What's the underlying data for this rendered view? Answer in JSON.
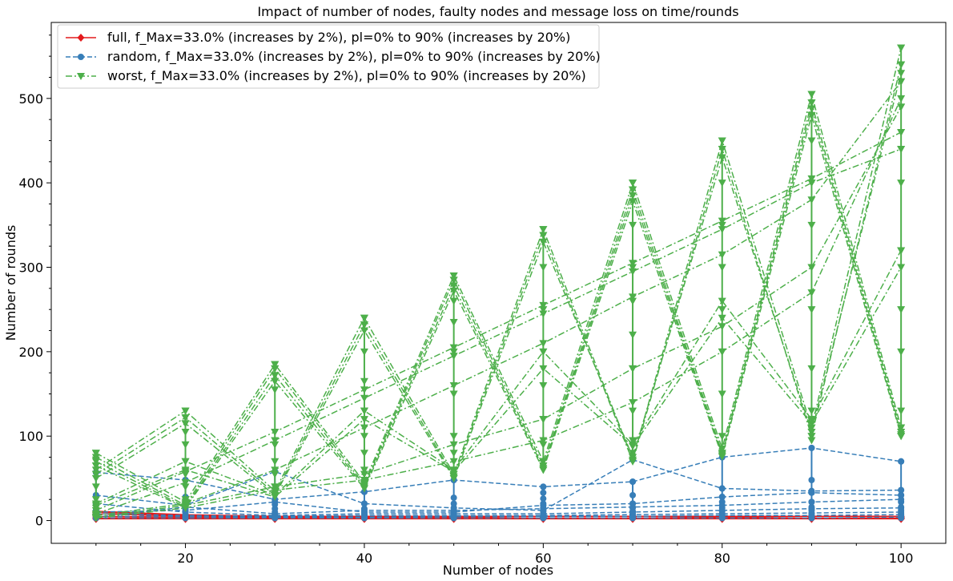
{
  "chart_data": {
    "type": "line",
    "title": "Impact of number of nodes, faulty nodes and message loss on time/rounds",
    "xlabel": "Number of nodes",
    "ylabel": "Number of rounds",
    "xlim": [
      5,
      105
    ],
    "ylim": [
      -27,
      590
    ],
    "xticks": [
      20,
      40,
      60,
      80,
      100
    ],
    "yticks": [
      0,
      100,
      200,
      300,
      400,
      500
    ],
    "legend_position": "top-left",
    "nodes": [
      10,
      20,
      30,
      40,
      50,
      60,
      70,
      80,
      90,
      100
    ],
    "series": [
      {
        "name": "full, f_Max=33.0% (increases by 2%), pl=0% to 90% (increases by 20%)",
        "color": "#e41a1c",
        "marker": "diamond",
        "linestyle": "solid",
        "lines": [
          [
            10,
            6,
            4,
            4,
            4,
            3,
            3,
            4,
            3,
            3
          ],
          [
            8,
            5,
            3,
            3,
            3,
            3,
            3,
            3,
            3,
            3
          ],
          [
            5,
            4,
            3,
            3,
            3,
            3,
            3,
            3,
            3,
            3
          ],
          [
            3,
            3,
            3,
            3,
            3,
            3,
            3,
            3,
            3,
            3
          ],
          [
            11,
            7,
            5,
            5,
            5,
            5,
            5,
            5,
            5,
            5
          ],
          [
            2,
            2,
            2,
            2,
            2,
            2,
            2,
            2,
            2,
            2
          ]
        ],
        "stack": [
          [
            2,
            4,
            6,
            8,
            10,
            11
          ],
          [
            2,
            3,
            5,
            6,
            7
          ],
          [
            2,
            3,
            4,
            5
          ],
          [
            2,
            3,
            4,
            5
          ],
          [
            2,
            3,
            4,
            5
          ],
          [
            2,
            3,
            4,
            5
          ],
          [
            2,
            3,
            4,
            5
          ],
          [
            2,
            3,
            4,
            5
          ],
          [
            2,
            3,
            4,
            5
          ],
          [
            2,
            3,
            4,
            5
          ]
        ]
      },
      {
        "name": "random, f_Max=33.0% (increases by 2%), pl=0% to 90% (increases by 20%)",
        "color": "#377eb8",
        "marker": "circle",
        "linestyle": "dashed",
        "lines": [
          [
            57,
            48,
            25,
            34,
            48,
            40,
            46,
            75,
            86,
            70
          ],
          [
            30,
            18,
            58,
            20,
            15,
            12,
            72,
            38,
            35,
            36
          ],
          [
            10,
            12,
            22,
            10,
            10,
            18,
            20,
            28,
            33,
            30
          ],
          [
            4,
            16,
            8,
            12,
            12,
            14,
            16,
            18,
            22,
            25
          ],
          [
            20,
            10,
            6,
            8,
            8,
            8,
            10,
            12,
            14,
            15
          ],
          [
            8,
            6,
            5,
            6,
            6,
            6,
            7,
            8,
            9,
            10
          ],
          [
            5,
            5,
            4,
            4,
            5,
            5,
            5,
            6,
            6,
            7
          ],
          [
            3,
            3,
            3,
            3,
            3,
            3,
            3,
            3,
            3,
            4
          ]
        ],
        "stack": [
          [
            3,
            5,
            8,
            12,
            20,
            30,
            57
          ],
          [
            3,
            5,
            7,
            10,
            14,
            18,
            28,
            48
          ],
          [
            3,
            5,
            7,
            10,
            14,
            19,
            25,
            58
          ],
          [
            3,
            5,
            7,
            10,
            14,
            20,
            34
          ],
          [
            3,
            5,
            8,
            11,
            15,
            20,
            27,
            48
          ],
          [
            3,
            5,
            8,
            11,
            15,
            20,
            26,
            33,
            40
          ],
          [
            3,
            5,
            8,
            11,
            15,
            20,
            30,
            46
          ],
          [
            3,
            5,
            8,
            11,
            15,
            22,
            28,
            38,
            75
          ],
          [
            3,
            5,
            8,
            12,
            16,
            22,
            33,
            48,
            86
          ],
          [
            3,
            5,
            8,
            12,
            16,
            22,
            30,
            36,
            70
          ]
        ]
      },
      {
        "name": "worst, f_Max=33.0% (increases by 2%), pl=0% to 90% (increases by 20%)",
        "color": "#4daf4a",
        "marker": "triangle-down",
        "linestyle": "dashdot",
        "lines": [
          [
            80,
            22,
            185,
            45,
            290,
            70,
            400,
            85,
            505,
            110
          ],
          [
            75,
            18,
            180,
            42,
            285,
            65,
            392,
            80,
            495,
            105
          ],
          [
            70,
            16,
            172,
            40,
            278,
            62,
            385,
            78,
            488,
            102
          ],
          [
            65,
            15,
            165,
            38,
            272,
            60,
            378,
            76,
            480,
            100
          ],
          [
            60,
            130,
            35,
            240,
            55,
            345,
            72,
            450,
            110,
            560
          ],
          [
            55,
            122,
            32,
            232,
            52,
            338,
            70,
            440,
            100,
            540
          ],
          [
            50,
            115,
            30,
            225,
            50,
            330,
            75,
            430,
            105,
            530
          ],
          [
            8,
            45,
            95,
            145,
            195,
            245,
            295,
            345,
            400,
            440
          ],
          [
            12,
            58,
            105,
            155,
            205,
            255,
            305,
            355,
            405,
            460
          ],
          [
            6,
            20,
            60,
            110,
            160,
            210,
            265,
            315,
            380,
            520
          ],
          [
            4,
            18,
            40,
            55,
            90,
            120,
            180,
            230,
            300,
            490
          ],
          [
            3,
            15,
            36,
            48,
            70,
            95,
            140,
            200,
            270,
            500
          ],
          [
            20,
            70,
            30,
            130,
            60,
            200,
            90,
            260,
            120,
            320
          ],
          [
            18,
            60,
            28,
            120,
            58,
            180,
            88,
            240,
            115,
            300
          ]
        ],
        "stack": [
          [
            3,
            8,
            15,
            25,
            40,
            55,
            65,
            72,
            80
          ],
          [
            15,
            25,
            40,
            55,
            70,
            90,
            105,
            115,
            122,
            130
          ],
          [
            30,
            40,
            55,
            70,
            90,
            105,
            155,
            165,
            172,
            180,
            185
          ],
          [
            38,
            45,
            60,
            80,
            100,
            130,
            165,
            200,
            225,
            232,
            240
          ],
          [
            50,
            55,
            60,
            80,
            100,
            150,
            200,
            235,
            260,
            272,
            285,
            290
          ],
          [
            60,
            65,
            70,
            90,
            120,
            160,
            200,
            250,
            300,
            330,
            338,
            345
          ],
          [
            70,
            75,
            80,
            95,
            130,
            180,
            220,
            260,
            300,
            350,
            378,
            392,
            400
          ],
          [
            76,
            80,
            85,
            100,
            150,
            200,
            250,
            300,
            350,
            400,
            430,
            440,
            450
          ],
          [
            95,
            100,
            105,
            110,
            130,
            180,
            250,
            300,
            350,
            400,
            450,
            480,
            495,
            505
          ],
          [
            100,
            105,
            110,
            130,
            200,
            250,
            320,
            400,
            440,
            460,
            490,
            520,
            540,
            560
          ]
        ]
      }
    ]
  }
}
